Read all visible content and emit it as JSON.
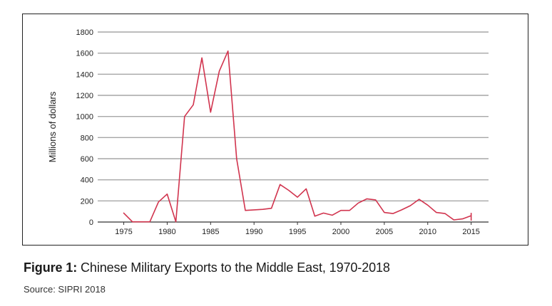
{
  "figure": {
    "caption_label": "Figure 1:",
    "caption_text": " Chinese Military Exports to the Middle East, 1970-2018",
    "source": "Source: SIPRI 2018"
  },
  "chart_data": {
    "type": "line",
    "title": "",
    "xlabel": "",
    "ylabel": "Millions of dollars",
    "xlim": [
      1972,
      2017
    ],
    "ylim": [
      0,
      1800
    ],
    "x_ticks": [
      1975,
      1980,
      1985,
      1990,
      1995,
      2000,
      2005,
      2010,
      2015
    ],
    "y_ticks": [
      0,
      200,
      400,
      600,
      800,
      1000,
      1200,
      1400,
      1600,
      1800
    ],
    "grid": "horizontal",
    "line_color": "#d1344e",
    "grid_color": "#a6a6a6",
    "series": [
      {
        "x": [
          1975,
          1976,
          1977,
          1978,
          1979,
          1980,
          1981,
          1982,
          1983,
          1984,
          1985,
          1986,
          1987,
          1988,
          1989,
          1990,
          1991,
          1992,
          1993,
          1994,
          1995,
          1996,
          1997,
          1998,
          1999,
          2000,
          2001,
          2002,
          2003,
          2004,
          2005,
          2006,
          2007,
          2008,
          2009,
          2010,
          2011,
          2012,
          2013,
          2014,
          2015
        ],
        "y": [
          85,
          2,
          2,
          2,
          190,
          265,
          2,
          1000,
          1110,
          1555,
          1040,
          1430,
          1620,
          600,
          110,
          115,
          120,
          130,
          355,
          300,
          235,
          315,
          55,
          85,
          65,
          110,
          110,
          180,
          220,
          210,
          90,
          80,
          115,
          155,
          215,
          160,
          90,
          80,
          20,
          30,
          60
        ]
      }
    ]
  }
}
